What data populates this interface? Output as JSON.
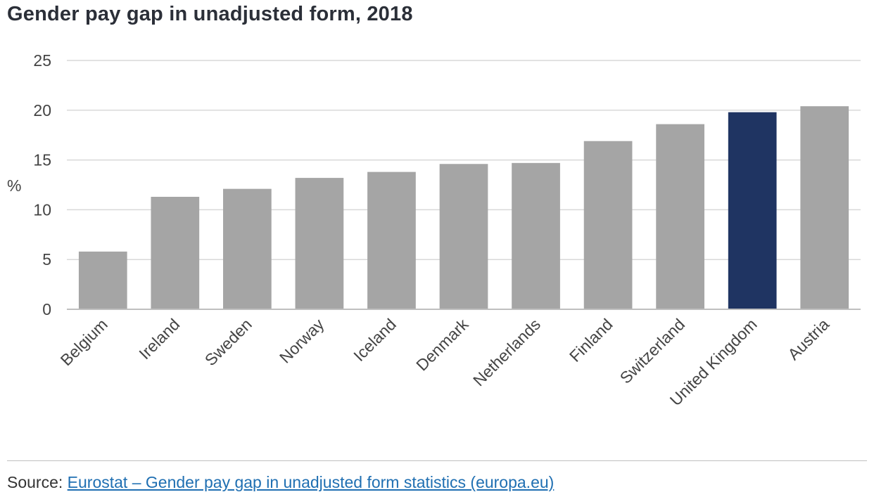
{
  "chart_data": {
    "type": "bar",
    "title": "Gender pay gap in unadjusted form, 2018",
    "xlabel": "",
    "ylabel": "%",
    "categories": [
      "Belgium",
      "Ireland",
      "Sweden",
      "Norway",
      "Iceland",
      "Denmark",
      "Netherlands",
      "Finland",
      "Switzerland",
      "United Kingdom",
      "Austria"
    ],
    "values": [
      5.8,
      11.3,
      12.1,
      13.2,
      13.8,
      14.6,
      14.7,
      16.9,
      18.6,
      19.8,
      20.4
    ],
    "ylim": [
      0,
      25
    ],
    "yticks": [
      0,
      5,
      10,
      15,
      20,
      25
    ],
    "grid": true,
    "colors": {
      "default_bar": "#a5a5a5",
      "highlight_bar": "#1f3462",
      "gridline": "#d9d9d9",
      "axis": "#bfbfbf"
    },
    "highlight_category": "United Kingdom"
  },
  "footer": {
    "source_prefix": "Source: ",
    "source_link_text": "Eurostat – Gender pay gap in unadjusted form statistics (europa.eu)"
  }
}
